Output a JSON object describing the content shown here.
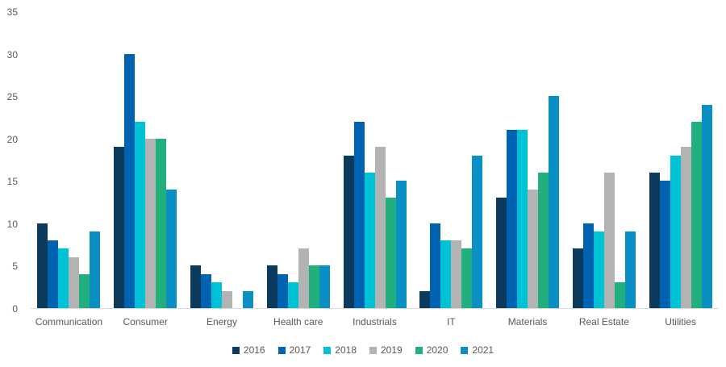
{
  "chart_data": {
    "type": "bar",
    "title": "",
    "xlabel": "",
    "ylabel": "",
    "categories": [
      "Communication",
      "Consumer",
      "Energy",
      "Health care",
      "Industrials",
      "IT",
      "Materials",
      "Real Estate",
      "Utilities"
    ],
    "series": [
      {
        "name": "2016",
        "color": "#0c3a5c",
        "values": [
          10,
          19,
          5,
          5,
          18,
          2,
          13,
          7,
          16
        ]
      },
      {
        "name": "2017",
        "color": "#0063b1",
        "values": [
          8,
          30,
          4,
          4,
          22,
          10,
          21,
          10,
          15
        ]
      },
      {
        "name": "2018",
        "color": "#00c2d6",
        "values": [
          7,
          22,
          3,
          3,
          16,
          8,
          21,
          9,
          18
        ]
      },
      {
        "name": "2019",
        "color": "#b3b3b3",
        "values": [
          6,
          20,
          2,
          7,
          19,
          8,
          14,
          16,
          19
        ]
      },
      {
        "name": "2020",
        "color": "#20af7d",
        "values": [
          4,
          20,
          0,
          5,
          13,
          7,
          16,
          3,
          22
        ]
      },
      {
        "name": "2021",
        "color": "#0a8fc5",
        "values": [
          9,
          14,
          2,
          5,
          15,
          18,
          25,
          9,
          24
        ]
      }
    ],
    "ylim": [
      0,
      35
    ],
    "yticks": [
      0,
      5,
      10,
      15,
      20,
      25,
      30,
      35
    ],
    "grid": false,
    "legend_position": "bottom",
    "axis_text_color": "#595959",
    "baseline_color": "#d9d9d9",
    "background_color": "#ffffff"
  }
}
